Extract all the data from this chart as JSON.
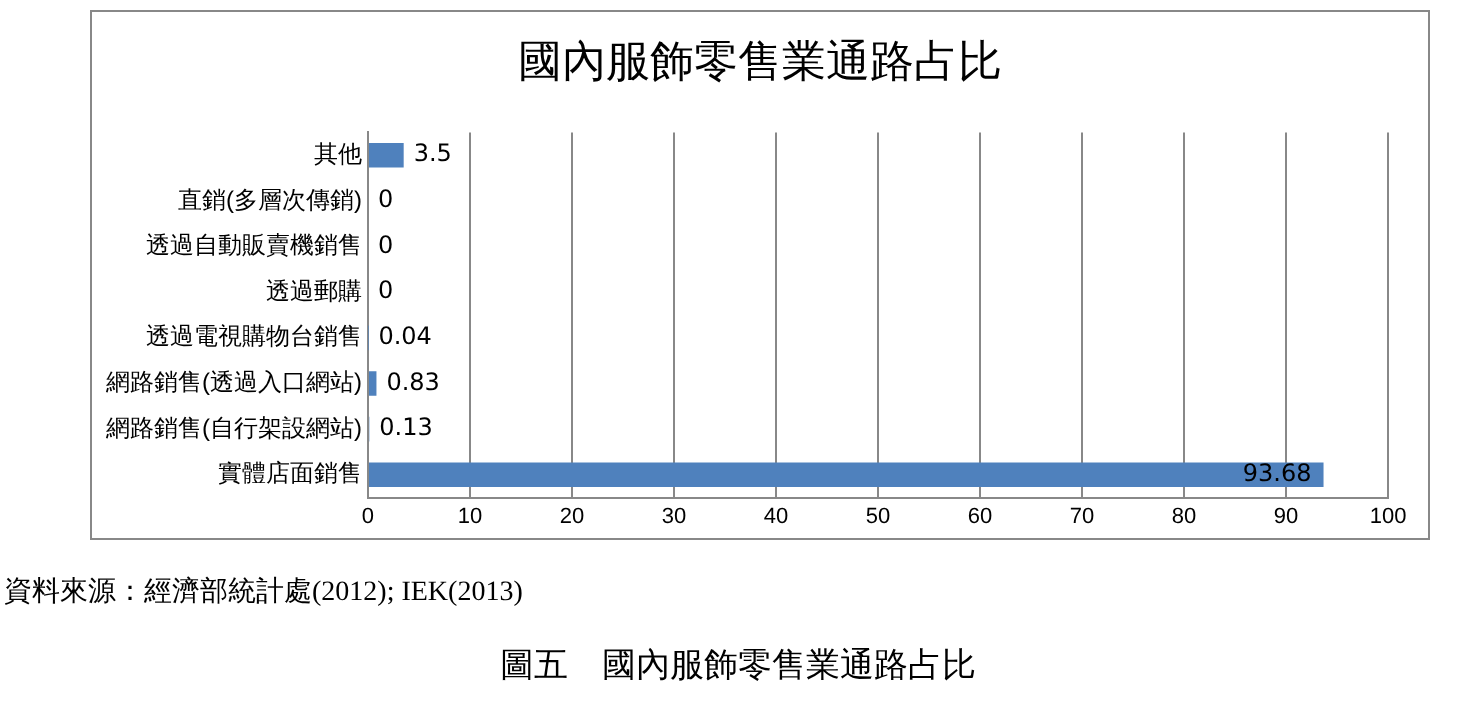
{
  "chart_data": {
    "type": "bar",
    "orientation": "horizontal",
    "title": "國內服飾零售業通路占比",
    "categories": [
      "其他",
      "直銷(多層次傳銷)",
      "透過自動販賣機銷售",
      "透過郵購",
      "透過電視購物台銷售",
      "網路銷售(透過入口網站)",
      "網路銷售(自行架設網站)",
      "實體店面銷售"
    ],
    "values": [
      3.5,
      0,
      0,
      0,
      0.04,
      0.83,
      0.13,
      93.68
    ],
    "color": "#4f81bd",
    "xlim": [
      0,
      100
    ],
    "xticks": [
      0,
      10,
      20,
      30,
      40,
      50,
      60,
      70,
      80,
      90,
      100
    ],
    "grid": "x",
    "legend": false,
    "data_labels": true,
    "annotations": [
      "資料來源：經濟部統計處(2012); IEK(2013)",
      "圖五　國內服飾零售業通路占比"
    ]
  }
}
